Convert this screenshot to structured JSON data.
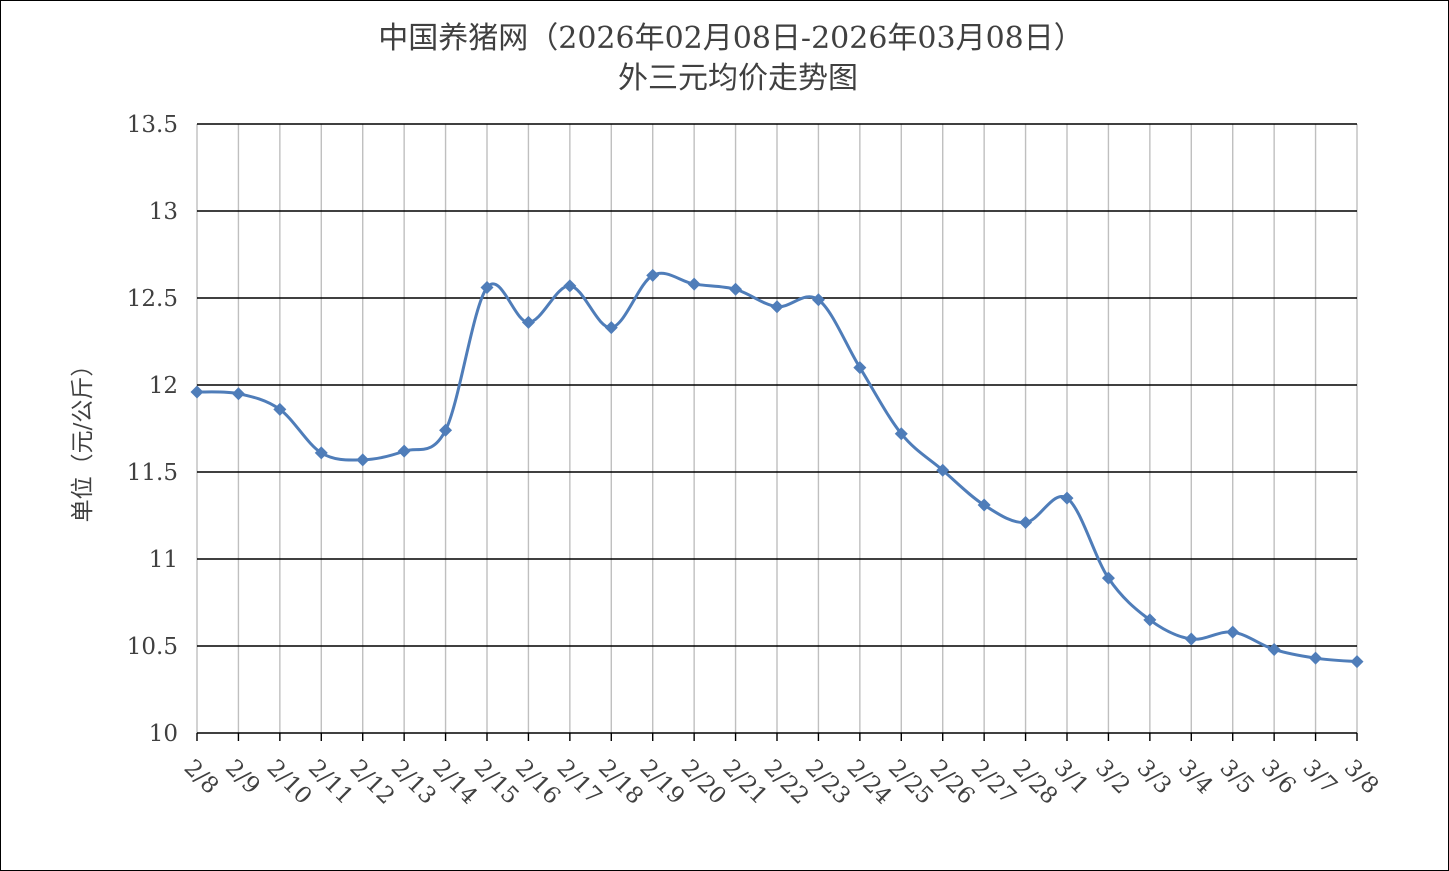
{
  "chart_data": {
    "type": "line",
    "title": "中国养猪网（2026年02月08日-2026年03月08日）",
    "subtitle": "外三元均价走势图",
    "ylabel": "单位（元/公斤）",
    "xlabel": "",
    "ylim": [
      10,
      13.5
    ],
    "y_ticks": [
      "10",
      "10.5",
      "11",
      "11.5",
      "12",
      "12.5",
      "13",
      "13.5"
    ],
    "grid": true,
    "legend": "none",
    "line_color": "#4F7DB9",
    "categories": [
      "2/8",
      "2/9",
      "2/10",
      "2/11",
      "2/12",
      "2/13",
      "2/14",
      "2/15",
      "2/16",
      "2/17",
      "2/18",
      "2/19",
      "2/20",
      "2/21",
      "2/22",
      "2/23",
      "2/24",
      "2/25",
      "2/26",
      "2/27",
      "2/28",
      "3/1",
      "3/2",
      "3/3",
      "3/4",
      "3/5",
      "3/6",
      "3/7",
      "3/8"
    ],
    "values": [
      11.96,
      11.95,
      11.86,
      11.61,
      11.57,
      11.62,
      11.74,
      12.56,
      12.36,
      12.57,
      12.33,
      12.63,
      12.58,
      12.55,
      12.45,
      12.49,
      12.1,
      11.72,
      11.51,
      11.31,
      11.21,
      11.35,
      10.89,
      10.65,
      10.54,
      10.58,
      10.48,
      10.43,
      10.41
    ]
  }
}
